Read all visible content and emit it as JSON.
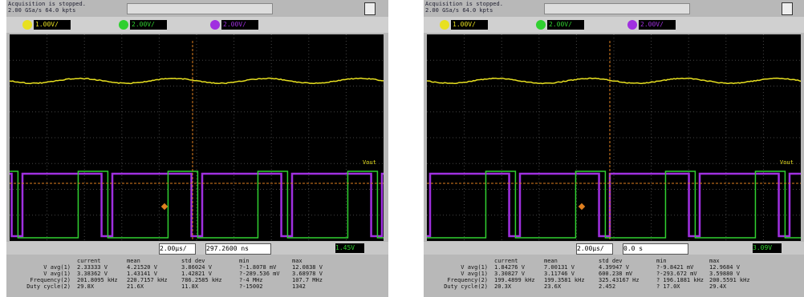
{
  "scopes": [
    {
      "status": "Acquisition is stopped.",
      "rate": "2.00 GSa/s   64.0 kpts",
      "ch1": "1.00V/",
      "ch2": "2.00V/",
      "ch3": "2.00V/",
      "timebase": "2.00μs/",
      "delay": "297.2600 ns",
      "trigger": "1.45V",
      "vout": "Vout",
      "table": {
        "headers": [
          "current",
          "mean",
          "std dev",
          "min",
          "max"
        ],
        "rows": [
          {
            "label": "V avg(1)",
            "cells": [
              "2.33333 V",
              "4.21520 V",
              "3.86024 V",
              "?-1.8078 mV",
              "12.0838 V"
            ]
          },
          {
            "label": "V avg(1)",
            "cells": [
              "3.38362 V",
              "1.43141 V",
              "1.42821 V",
              "?-289.536 mV",
              "3.68978 V"
            ]
          },
          {
            "label": "Frequency(2)",
            "cells": [
              "201.8095 kHz",
              "220.7157 kHz",
              "786.2585 kHz",
              "?-4 MHz",
              "107.7 MHz"
            ]
          },
          {
            "label": "Duty cycle(2)",
            "cells": [
              "29.8X",
              "21.6X",
              "11.8X",
              "?-15002",
              "1342"
            ]
          }
        ]
      }
    },
    {
      "status": "Acquisition is stopped.",
      "rate": "2.00 GSa/s   64.0 kpts",
      "ch1": "1.00V/",
      "ch2": "2.00V/",
      "ch3": "2.00V/",
      "timebase": "2.00μs/",
      "delay": "0.0 s",
      "trigger": "3.09V",
      "vout": "Vout",
      "table": {
        "headers": [
          "current",
          "mean",
          "std dev",
          "min",
          "max"
        ],
        "rows": [
          {
            "label": "V avg(1)",
            "cells": [
              "1.84276 V",
              "7.00131 V",
              "4.39947 V",
              "?-9.8421 mV",
              "12.9684 V"
            ]
          },
          {
            "label": "V avg(1)",
            "cells": [
              "3.30827 V",
              "3.11746 V",
              "600.238 mV",
              "?-293.672 mV",
              "3.59880 V"
            ]
          },
          {
            "label": "Frequency(2)",
            "cells": [
              "199.4899 kHz",
              "199.3581 kHz",
              "325.43167 Hz",
              "? 196.1881 kHz",
              "200.5591 kHz"
            ]
          },
          {
            "label": "Duty cycle(2)",
            "cells": [
              "20.3X",
              "23.6X",
              "2.452",
              "? 17.0X",
              "29.4X"
            ]
          }
        ]
      }
    }
  ]
}
